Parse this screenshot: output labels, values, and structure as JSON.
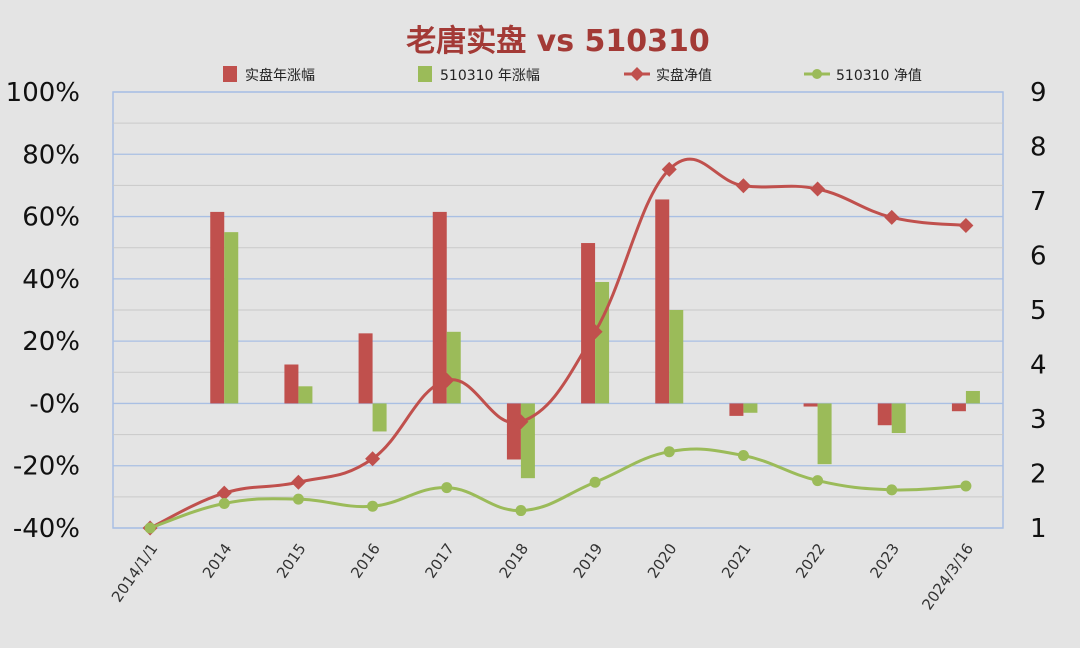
{
  "chart_data": {
    "type": "bar",
    "title": "老唐实盘 vs 510310",
    "categories": [
      "2014/1/1",
      "2014",
      "2015",
      "2016",
      "2017",
      "2018",
      "2019",
      "2020",
      "2021",
      "2022",
      "2023",
      "2024/3/16"
    ],
    "y_left": {
      "ylim": [
        -40,
        100
      ],
      "ticks": [
        100,
        80,
        60,
        40,
        20,
        0,
        -20,
        -40
      ],
      "tick_labels": [
        "100%",
        "80%",
        "60%",
        "40%",
        "20%",
        "-0%",
        "-20%",
        "-40%"
      ]
    },
    "y_right": {
      "ylim": [
        1,
        9
      ],
      "ticks": [
        9,
        8,
        7,
        6,
        5,
        4,
        3,
        2,
        1
      ],
      "tick_labels": [
        "9",
        "8",
        "7",
        "6",
        "5",
        "4",
        "3",
        "2",
        "1"
      ]
    },
    "grid": true,
    "legend_position": "top",
    "series": [
      {
        "name": "实盘年涨幅",
        "type": "bar",
        "axis": "left",
        "color": "#c0504d",
        "values": [
          null,
          61.5,
          12.5,
          22.5,
          61.5,
          -18,
          51.5,
          65.5,
          -4,
          -1,
          -7,
          -2.5
        ]
      },
      {
        "name": "510310 年涨幅",
        "type": "bar",
        "axis": "left",
        "color": "#9bbb59",
        "values": [
          null,
          55,
          5.5,
          -9,
          23,
          -24,
          39,
          30,
          -3,
          -19.5,
          -9.5,
          4
        ]
      },
      {
        "name": "实盘净值",
        "type": "line",
        "axis": "right",
        "color": "#c0504d",
        "marker": "diamond",
        "values": [
          1.0,
          1.64,
          1.84,
          2.27,
          3.71,
          2.95,
          4.6,
          7.58,
          7.28,
          7.22,
          6.7,
          6.55
        ]
      },
      {
        "name": "510310 净值",
        "type": "line",
        "axis": "right",
        "color": "#9bbb59",
        "marker": "circle",
        "values": [
          1.0,
          1.45,
          1.53,
          1.4,
          1.74,
          1.32,
          1.84,
          2.4,
          2.33,
          1.87,
          1.7,
          1.77
        ]
      }
    ],
    "colors": {
      "title": "#a33a36",
      "grid": "#a9bfe3",
      "axis_line": "#a9bfe3",
      "background": "#e4e4e4"
    }
  }
}
